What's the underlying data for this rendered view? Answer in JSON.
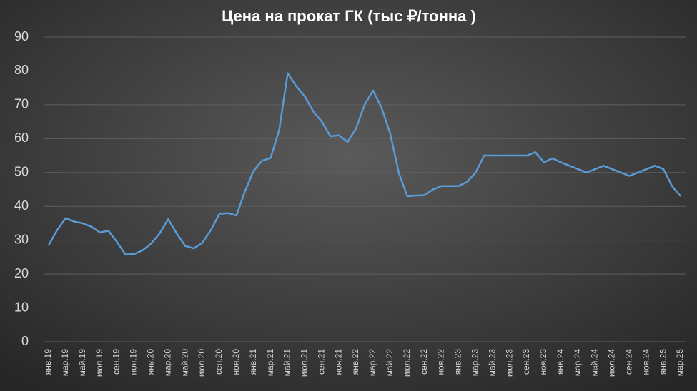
{
  "chart_data": {
    "type": "line",
    "title": "Цена на прокат ГК (тыс ₽/тонна )",
    "categories": [
      "янв.19",
      null,
      "мар.19",
      null,
      "май.19",
      null,
      "июл.19",
      null,
      "сен.19",
      null,
      "ноя.19",
      null,
      "янв.20",
      null,
      "мар.20",
      null,
      "май.20",
      null,
      "июл.20",
      null,
      "сен.20",
      null,
      "ноя.20",
      null,
      "янв.21",
      null,
      "мар.21",
      null,
      "май.21",
      null,
      "июл.21",
      null,
      "сен.21",
      null,
      "ноя.21",
      null,
      "янв.22",
      null,
      "мар.22",
      null,
      "май.22",
      null,
      "июл.22",
      null,
      "сен.22",
      null,
      "ноя.22",
      null,
      "янв.23",
      null,
      "мар.23",
      null,
      "май.23",
      null,
      "июл.23",
      null,
      "сен.23",
      null,
      "ноя.23",
      null,
      "янв.24",
      null,
      "мар.24",
      null,
      "май.24",
      null,
      "июл.24",
      null,
      "сен.24",
      null,
      "ноя.24",
      null,
      "янв.25",
      null,
      "мар.25"
    ],
    "values": [
      28.5,
      33,
      36.5,
      35.5,
      35,
      34,
      32.3,
      32.8,
      29.5,
      25.8,
      25.9,
      27,
      29,
      32,
      36.2,
      32,
      28.3,
      27.6,
      29.2,
      33,
      37.8,
      38,
      37.3,
      44.5,
      50.5,
      53.5,
      54.3,
      62.5,
      79.3,
      75.5,
      72.5,
      68,
      65,
      60.7,
      61,
      59,
      63,
      70,
      74.2,
      69,
      61.5,
      50,
      43,
      43.2,
      43.3,
      45,
      46,
      46,
      46,
      47.2,
      50,
      55,
      55,
      55,
      55,
      55,
      55,
      56,
      53,
      54.2,
      53,
      52,
      51,
      50,
      51,
      52,
      51,
      50,
      49,
      50,
      51,
      52,
      51,
      46,
      43
    ],
    "color": "#5b9bd5",
    "ylim": [
      0,
      90
    ],
    "yticks": [
      0,
      10,
      20,
      30,
      40,
      50,
      60,
      70,
      80,
      90
    ],
    "grid": true
  }
}
